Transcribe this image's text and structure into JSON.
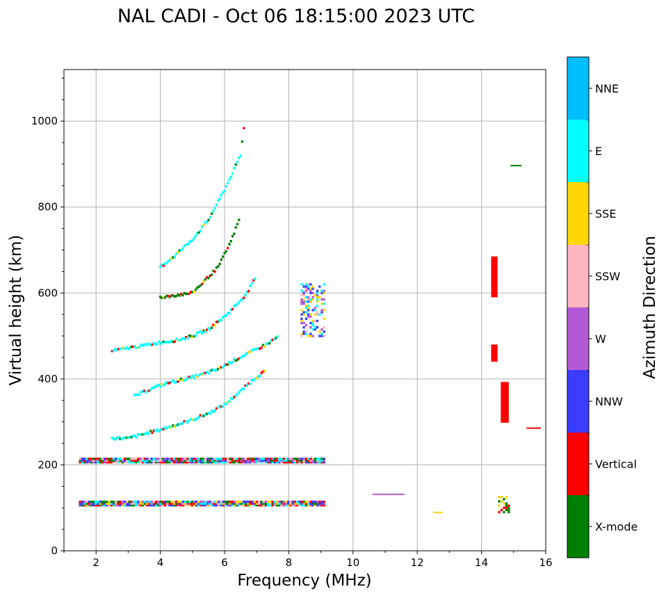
{
  "chart_data": {
    "type": "scatter",
    "title": "NAL CADI - Oct 06 18:15:00 2023 UTC",
    "xlabel": "Frequency (MHz)",
    "ylabel": "Virtual height (km)",
    "xlim": [
      1,
      16
    ],
    "ylim": [
      0,
      1120
    ],
    "xticks": [
      2,
      4,
      6,
      8,
      10,
      12,
      14,
      16
    ],
    "yticks": [
      0,
      200,
      400,
      600,
      800,
      1000
    ],
    "grid": true,
    "colorbar": {
      "label": "Azimuth Direction",
      "categories": [
        {
          "name": "X-mode",
          "color": "#008000"
        },
        {
          "name": "Vertical",
          "color": "#ff0000"
        },
        {
          "name": "NNW",
          "color": "#3c3cff"
        },
        {
          "name": "W",
          "color": "#b45ad7"
        },
        {
          "name": "SSW",
          "color": "#ffb6c1"
        },
        {
          "name": "SSE",
          "color": "#ffd700"
        },
        {
          "name": "E",
          "color": "#00ffff"
        },
        {
          "name": "NNE",
          "color": "#00bfff"
        }
      ]
    },
    "segments": [
      {
        "name": "E-layer echo band",
        "x": [
          1.5,
          9.1
        ],
        "y": [
          106,
          114
        ],
        "dir_mix": [
          "Vertical",
          "X-mode",
          "SSE",
          "NNW",
          "W",
          "SSW",
          "E"
        ]
      },
      {
        "name": "F-layer base echo band",
        "x": [
          1.5,
          9.1
        ],
        "y": [
          206,
          214
        ],
        "dir_mix": [
          "Vertical",
          "X-mode",
          "SSW",
          "W",
          "E",
          "NNW"
        ]
      },
      {
        "name": "F trace 1",
        "points": [
          [
            2.5,
            262
          ],
          [
            3.0,
            262
          ],
          [
            3.5,
            272
          ],
          [
            4.0,
            282
          ],
          [
            4.5,
            293
          ],
          [
            5.0,
            305
          ],
          [
            5.5,
            320
          ],
          [
            6.0,
            340
          ],
          [
            6.4,
            365
          ],
          [
            6.7,
            385
          ],
          [
            7.0,
            405
          ],
          [
            7.3,
            420
          ]
        ],
        "color": "E"
      },
      {
        "name": "F trace 2",
        "points": [
          [
            3.2,
            360
          ],
          [
            3.8,
            380
          ],
          [
            4.3,
            392
          ],
          [
            4.8,
            400
          ],
          [
            5.3,
            410
          ],
          [
            5.8,
            423
          ],
          [
            6.3,
            443
          ],
          [
            6.8,
            462
          ],
          [
            7.3,
            480
          ],
          [
            7.7,
            500
          ]
        ],
        "color": "E"
      },
      {
        "name": "F trace 3",
        "points": [
          [
            2.5,
            465
          ],
          [
            3.0,
            472
          ],
          [
            3.5,
            478
          ],
          [
            4.0,
            485
          ],
          [
            4.5,
            490
          ],
          [
            5.0,
            500
          ],
          [
            5.5,
            515
          ],
          [
            6.0,
            545
          ],
          [
            6.4,
            575
          ],
          [
            6.7,
            600
          ],
          [
            7.0,
            640
          ]
        ],
        "color": "E"
      },
      {
        "name": "F trace 4",
        "points": [
          [
            4.0,
            660
          ],
          [
            4.5,
            690
          ],
          [
            5.0,
            725
          ],
          [
            5.5,
            770
          ],
          [
            6.0,
            840
          ],
          [
            6.5,
            920
          ],
          [
            6.65,
            1015
          ]
        ],
        "color": "E"
      },
      {
        "name": "F trace 5",
        "points": [
          [
            4.0,
            590
          ],
          [
            4.5,
            595
          ],
          [
            5.0,
            600
          ],
          [
            5.4,
            630
          ],
          [
            5.8,
            660
          ],
          [
            6.2,
            720
          ],
          [
            6.5,
            780
          ]
        ],
        "color": "X-mode"
      },
      {
        "name": "mid-band cluster",
        "x": [
          8.4,
          9.1
        ],
        "y": [
          500,
          620
        ],
        "dir_mix": [
          "NNW",
          "W",
          "SSW",
          "SSE",
          "E"
        ]
      },
      {
        "name": "Vertical block high",
        "x": [
          14.3,
          14.5
        ],
        "y": [
          590,
          685
        ],
        "color": "Vertical"
      },
      {
        "name": "Vertical block mid",
        "x": [
          14.3,
          14.5
        ],
        "y": [
          440,
          480
        ],
        "color": "Vertical"
      },
      {
        "name": "Vertical block low",
        "x": [
          14.6,
          14.85
        ],
        "y": [
          298,
          393
        ],
        "color": "Vertical"
      },
      {
        "name": "low cluster 14.6",
        "x": [
          14.55,
          14.85
        ],
        "y": [
          90,
          125
        ],
        "dir_mix": [
          "SSE",
          "X-mode",
          "Vertical"
        ]
      },
      {
        "name": "isolated echo",
        "x": [
          15.4,
          15.85
        ],
        "y": [
          285,
          287
        ],
        "color": "Vertical"
      },
      {
        "name": "isolated echo",
        "x": [
          14.9,
          15.25
        ],
        "y": [
          895,
          898
        ],
        "color": "X-mode"
      },
      {
        "name": "isolated echo",
        "x": [
          10.6,
          11.6
        ],
        "y": [
          130,
          133
        ],
        "color": "W"
      },
      {
        "name": "isolated echo",
        "x": [
          12.5,
          12.8
        ],
        "y": [
          88,
          91
        ],
        "color": "SSE"
      }
    ]
  }
}
